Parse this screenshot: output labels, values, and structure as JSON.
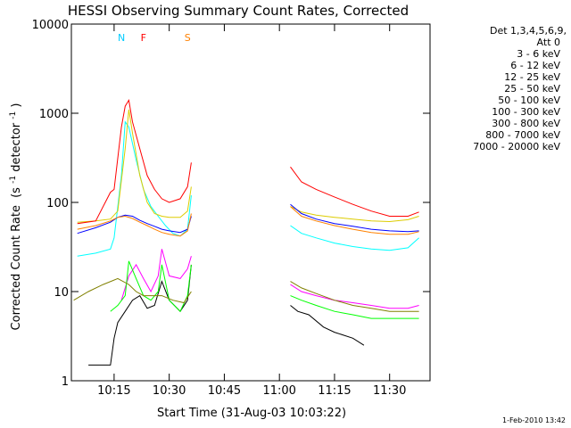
{
  "chart_data": {
    "type": "line",
    "title": "HESSI Observing Summary Count Rates, Corrected",
    "xlabel": "Start Time (31-Aug-03 10:03:22)",
    "ylabel": "Corrected Count Rate",
    "ylabel_units": "(s",
    "ylabel_exp1": "-1",
    "ylabel_mid": " detector",
    "ylabel_exp2": "-1",
    "ylabel_close": ")",
    "y_scale": "log",
    "ylim": [
      1,
      10000
    ],
    "xlim": [
      "10:03:22",
      "11:41:00"
    ],
    "x_ticks": [
      "10:15",
      "10:30",
      "10:45",
      "11:00",
      "11:15",
      "11:30"
    ],
    "y_ticks": [
      "1",
      "10",
      "100",
      "1000",
      "10000"
    ],
    "legend": {
      "title_line1": "Det 1,3,4,5,6,9,",
      "title_line2": "Att 0",
      "placement": "right-outside"
    },
    "series": [
      {
        "name": "3 - 6 keV",
        "color": "#000000",
        "points": [
          [
            "10:08",
            1.5
          ],
          [
            "10:14",
            1.5
          ],
          [
            "10:15",
            3
          ],
          [
            "10:16",
            4.5
          ],
          [
            "10:18",
            6
          ],
          [
            "10:20",
            8
          ],
          [
            "10:22",
            9
          ],
          [
            "10:24",
            6.5
          ],
          [
            "10:26",
            7
          ],
          [
            "10:28",
            13
          ],
          [
            "10:30",
            8
          ],
          [
            "10:33",
            6
          ],
          [
            "10:35",
            8
          ],
          [
            "10:36",
            20
          ],
          [
            "11:03",
            7
          ],
          [
            "11:05",
            6
          ],
          [
            "11:08",
            5.5
          ],
          [
            "11:12",
            4
          ],
          [
            "11:15",
            3.5
          ],
          [
            "11:20",
            3
          ],
          [
            "11:23",
            2.5
          ]
        ]
      },
      {
        "name": "6 - 12 keV",
        "color": "#ff00ff",
        "points": [
          [
            "10:17",
            8
          ],
          [
            "10:19",
            15
          ],
          [
            "10:21",
            20
          ],
          [
            "10:23",
            14
          ],
          [
            "10:25",
            10
          ],
          [
            "10:27",
            15
          ],
          [
            "10:28",
            30
          ],
          [
            "10:30",
            15
          ],
          [
            "10:33",
            14
          ],
          [
            "10:35",
            18
          ],
          [
            "10:36",
            25
          ],
          [
            "11:03",
            12
          ],
          [
            "11:06",
            10
          ],
          [
            "11:10",
            9
          ],
          [
            "11:15",
            8
          ],
          [
            "11:20",
            7.5
          ],
          [
            "11:25",
            7
          ],
          [
            "11:30",
            6.5
          ],
          [
            "11:35",
            6.5
          ],
          [
            "11:38",
            7
          ]
        ]
      },
      {
        "name": "12 - 25 keV",
        "color": "#00ff00",
        "points": [
          [
            "10:14",
            6
          ],
          [
            "10:16",
            7
          ],
          [
            "10:18",
            9
          ],
          [
            "10:19",
            22
          ],
          [
            "10:21",
            14
          ],
          [
            "10:23",
            9
          ],
          [
            "10:25",
            8
          ],
          [
            "10:27",
            10
          ],
          [
            "10:28",
            20
          ],
          [
            "10:30",
            8
          ],
          [
            "10:33",
            6
          ],
          [
            "10:35",
            9
          ],
          [
            "10:36",
            20
          ],
          [
            "11:03",
            9
          ],
          [
            "11:06",
            8
          ],
          [
            "11:10",
            7
          ],
          [
            "11:15",
            6
          ],
          [
            "11:20",
            5.5
          ],
          [
            "11:25",
            5
          ],
          [
            "11:30",
            5
          ],
          [
            "11:35",
            5
          ],
          [
            "11:38",
            5
          ]
        ]
      },
      {
        "name": "25 - 50 keV",
        "color": "#00ffff",
        "points": [
          [
            "10:05",
            25
          ],
          [
            "10:10",
            27
          ],
          [
            "10:14",
            30
          ],
          [
            "10:15",
            40
          ],
          [
            "10:17",
            200
          ],
          [
            "10:18",
            800
          ],
          [
            "10:19",
            700
          ],
          [
            "10:21",
            300
          ],
          [
            "10:23",
            140
          ],
          [
            "10:25",
            90
          ],
          [
            "10:27",
            70
          ],
          [
            "10:29",
            55
          ],
          [
            "10:31",
            45
          ],
          [
            "10:33",
            42
          ],
          [
            "10:35",
            50
          ],
          [
            "10:36",
            120
          ],
          [
            "11:03",
            55
          ],
          [
            "11:06",
            45
          ],
          [
            "11:10",
            40
          ],
          [
            "11:15",
            35
          ],
          [
            "11:20",
            32
          ],
          [
            "11:25",
            30
          ],
          [
            "11:30",
            29
          ],
          [
            "11:35",
            31
          ],
          [
            "11:38",
            40
          ]
        ]
      },
      {
        "name": "50 - 100 keV",
        "color": "#ddcc00",
        "points": [
          [
            "10:05",
            60
          ],
          [
            "10:10",
            62
          ],
          [
            "10:14",
            65
          ],
          [
            "10:16",
            80
          ],
          [
            "10:18",
            400
          ],
          [
            "10:19",
            1100
          ],
          [
            "10:20",
            600
          ],
          [
            "10:22",
            200
          ],
          [
            "10:24",
            100
          ],
          [
            "10:26",
            75
          ],
          [
            "10:28",
            70
          ],
          [
            "10:30",
            68
          ],
          [
            "10:33",
            68
          ],
          [
            "10:35",
            80
          ],
          [
            "10:36",
            150
          ],
          [
            "11:03",
            90
          ],
          [
            "11:06",
            78
          ],
          [
            "11:10",
            72
          ],
          [
            "11:15",
            68
          ],
          [
            "11:20",
            65
          ],
          [
            "11:25",
            62
          ],
          [
            "11:30",
            61
          ],
          [
            "11:35",
            64
          ],
          [
            "11:38",
            70
          ]
        ]
      },
      {
        "name": "100 - 300 keV",
        "color": "#ff0000",
        "points": [
          [
            "10:05",
            58
          ],
          [
            "10:10",
            62
          ],
          [
            "10:14",
            130
          ],
          [
            "10:15",
            140
          ],
          [
            "10:17",
            700
          ],
          [
            "10:18",
            1200
          ],
          [
            "10:19",
            1400
          ],
          [
            "10:20",
            800
          ],
          [
            "10:22",
            400
          ],
          [
            "10:24",
            200
          ],
          [
            "10:26",
            140
          ],
          [
            "10:28",
            110
          ],
          [
            "10:30",
            100
          ],
          [
            "10:33",
            110
          ],
          [
            "10:35",
            150
          ],
          [
            "10:36",
            280
          ],
          [
            "11:03",
            250
          ],
          [
            "11:06",
            170
          ],
          [
            "11:10",
            140
          ],
          [
            "11:15",
            115
          ],
          [
            "11:20",
            95
          ],
          [
            "11:25",
            80
          ],
          [
            "11:30",
            70
          ],
          [
            "11:35",
            70
          ],
          [
            "11:38",
            78
          ]
        ]
      },
      {
        "name": "300 - 800 keV",
        "color": "#0000ff",
        "points": [
          [
            "10:05",
            45
          ],
          [
            "10:10",
            52
          ],
          [
            "10:14",
            60
          ],
          [
            "10:16",
            68
          ],
          [
            "10:18",
            72
          ],
          [
            "10:20",
            70
          ],
          [
            "10:22",
            63
          ],
          [
            "10:24",
            58
          ],
          [
            "10:26",
            54
          ],
          [
            "10:28",
            50
          ],
          [
            "10:30",
            48
          ],
          [
            "10:33",
            46
          ],
          [
            "10:35",
            50
          ],
          [
            "10:36",
            70
          ],
          [
            "11:03",
            95
          ],
          [
            "11:06",
            75
          ],
          [
            "11:10",
            65
          ],
          [
            "11:15",
            58
          ],
          [
            "11:20",
            54
          ],
          [
            "11:25",
            50
          ],
          [
            "11:30",
            48
          ],
          [
            "11:35",
            47
          ],
          [
            "11:38",
            48
          ]
        ]
      },
      {
        "name": "800 - 7000 keV",
        "color": "#ff8000",
        "points": [
          [
            "10:05",
            50
          ],
          [
            "10:10",
            55
          ],
          [
            "10:14",
            62
          ],
          [
            "10:16",
            68
          ],
          [
            "10:18",
            70
          ],
          [
            "10:20",
            66
          ],
          [
            "10:22",
            60
          ],
          [
            "10:24",
            55
          ],
          [
            "10:26",
            50
          ],
          [
            "10:28",
            46
          ],
          [
            "10:30",
            44
          ],
          [
            "10:33",
            42
          ],
          [
            "10:35",
            48
          ],
          [
            "10:36",
            75
          ],
          [
            "11:03",
            90
          ],
          [
            "11:06",
            70
          ],
          [
            "11:10",
            62
          ],
          [
            "11:15",
            55
          ],
          [
            "11:20",
            50
          ],
          [
            "11:25",
            46
          ],
          [
            "11:30",
            44
          ],
          [
            "11:35",
            44
          ],
          [
            "11:38",
            47
          ]
        ]
      },
      {
        "name": "7000 - 20000 keV",
        "color": "#808000",
        "points": [
          [
            "10:04",
            8
          ],
          [
            "10:08",
            10
          ],
          [
            "10:12",
            12
          ],
          [
            "10:16",
            14
          ],
          [
            "10:19",
            12
          ],
          [
            "10:21",
            10
          ],
          [
            "10:23",
            9
          ],
          [
            "10:25",
            9
          ],
          [
            "10:28",
            9
          ],
          [
            "10:31",
            8
          ],
          [
            "10:34",
            7.5
          ],
          [
            "10:36",
            10
          ],
          [
            "11:03",
            13
          ],
          [
            "11:06",
            11
          ],
          [
            "11:10",
            9.5
          ],
          [
            "11:15",
            8
          ],
          [
            "11:20",
            7
          ],
          [
            "11:25",
            6.5
          ],
          [
            "11:30",
            6
          ],
          [
            "11:35",
            6
          ],
          [
            "11:38",
            6
          ]
        ]
      }
    ],
    "flags": [
      {
        "label": "N",
        "color": "#00ccff",
        "time": "10:17"
      },
      {
        "label": "F",
        "color": "#ff0000",
        "time": "10:23"
      },
      {
        "label": "S",
        "color": "#ff8000",
        "time": "10:35"
      }
    ],
    "footer_date": "1-Feb-2010 13:42"
  }
}
